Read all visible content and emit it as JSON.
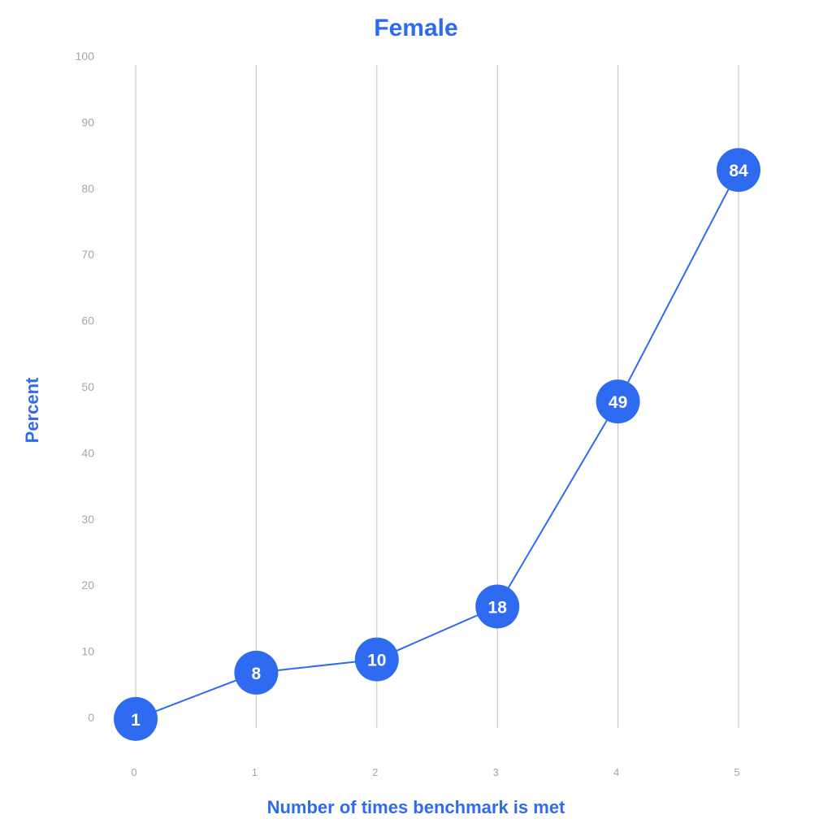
{
  "chart_data": {
    "type": "line",
    "title": "Female",
    "xlabel": "Number of times benchmark is met",
    "ylabel": "Percent",
    "x": [
      0,
      1,
      2,
      3,
      4,
      5
    ],
    "y": [
      1,
      8,
      10,
      18,
      49,
      84
    ],
    "point_labels": [
      "1",
      "8",
      "10",
      "18",
      "49",
      "84"
    ],
    "ylim": [
      0,
      100
    ],
    "yticks": [
      0,
      10,
      20,
      30,
      40,
      50,
      60,
      70,
      80,
      90,
      100
    ],
    "xticks": [
      0,
      1,
      2,
      3,
      4,
      5
    ],
    "grid": "vertical",
    "colors": {
      "accent": "#2f6bf0",
      "grid": "#bfbfbf",
      "tick": "#a6a6a6"
    }
  }
}
